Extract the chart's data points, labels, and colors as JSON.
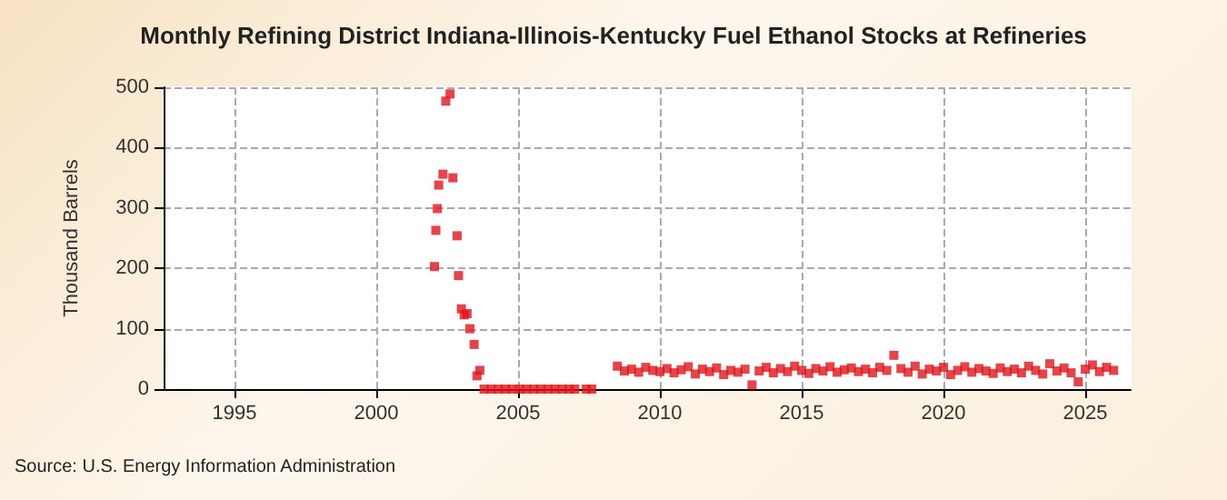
{
  "chart_data": {
    "type": "scatter",
    "title": "Monthly Refining District Indiana-Illinois-Kentucky Fuel Ethanol Stocks at Refineries",
    "ylabel": "Thousand Barrels",
    "annotations": [
      "Source: U.S. Energy Information Administration"
    ],
    "xlim": [
      1992.5,
      2026.6
    ],
    "xticks": [
      1995,
      2000,
      2005,
      2010,
      2015,
      2020,
      2025
    ],
    "ylim": [
      0,
      500
    ],
    "yticks": [
      0,
      100,
      200,
      300,
      400,
      500
    ],
    "grid": true,
    "marker": "square",
    "series": [
      {
        "color": "#e0151b",
        "x": [
          2002.05,
          2002.1,
          2002.15,
          2002.2,
          2002.35,
          2002.45,
          2002.6,
          2002.7,
          2002.85,
          2002.9,
          2003.0,
          2003.1,
          2003.2,
          2003.3,
          2003.45,
          2003.55,
          2003.65,
          2003.8,
          2004.05,
          2004.3,
          2004.55,
          2004.8,
          2005.05,
          2005.3,
          2005.55,
          2005.8,
          2006.05,
          2006.3,
          2006.55,
          2006.8,
          2007.0,
          2007.4,
          2007.6,
          2008.5,
          2008.75,
          2009,
          2009.25,
          2009.5,
          2009.75,
          2010,
          2010.25,
          2010.5,
          2010.75,
          2011,
          2011.25,
          2011.5,
          2011.75,
          2012,
          2012.25,
          2012.5,
          2012.75,
          2013,
          2013.25,
          2013.5,
          2013.75,
          2014,
          2014.25,
          2014.5,
          2014.75,
          2015,
          2015.25,
          2015.5,
          2015.75,
          2016,
          2016.25,
          2016.5,
          2016.75,
          2017,
          2017.25,
          2017.5,
          2017.75,
          2018,
          2018.25,
          2018.5,
          2018.75,
          2019,
          2019.25,
          2019.5,
          2019.75,
          2020,
          2020.25,
          2020.5,
          2020.75,
          2021,
          2021.25,
          2021.5,
          2021.75,
          2022,
          2022.25,
          2022.5,
          2022.75,
          2023,
          2023.25,
          2023.5,
          2023.75,
          2024,
          2024.25,
          2024.5,
          2024.75,
          2025,
          2025.25,
          2025.5,
          2025.75,
          2026
        ],
        "values": [
          203,
          263,
          299,
          338,
          356,
          477,
          489,
          350,
          254,
          188,
          133,
          123,
          125,
          100,
          74,
          22,
          31,
          0,
          0,
          0,
          0,
          0,
          0,
          0,
          0,
          0,
          0,
          0,
          0,
          0,
          0,
          0,
          0,
          38,
          30,
          33,
          28,
          36,
          31,
          29,
          34,
          27,
          32,
          37,
          25,
          33,
          29,
          35,
          24,
          31,
          28,
          33,
          7,
          30,
          36,
          27,
          34,
          29,
          38,
          31,
          26,
          34,
          30,
          37,
          28,
          32,
          35,
          29,
          33,
          27,
          36,
          31,
          56,
          34,
          28,
          38,
          25,
          33,
          30,
          36,
          24,
          31,
          37,
          28,
          34,
          30,
          26,
          35,
          29,
          33,
          27,
          38,
          31,
          25,
          42,
          30,
          35,
          27,
          12,
          33,
          40,
          29,
          36,
          31
        ]
      }
    ]
  }
}
